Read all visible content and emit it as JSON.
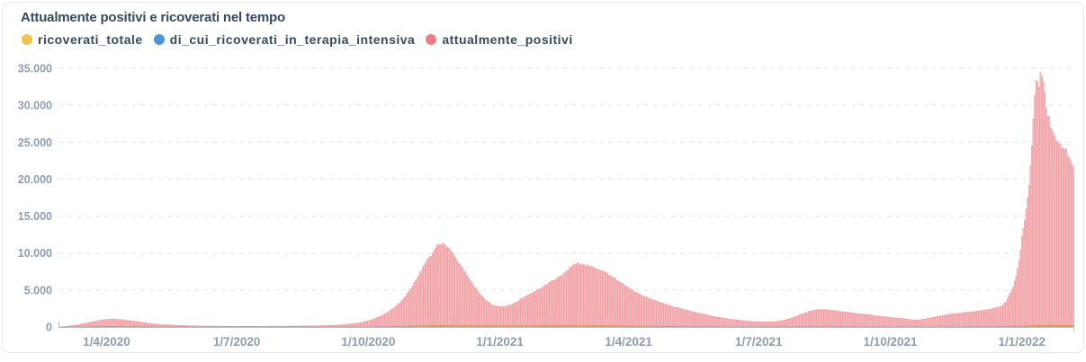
{
  "card": {
    "title": "Attualmente positivi e ricoverati nel tempo"
  },
  "legend": [
    {
      "label": "ricoverati_totale",
      "color": "#f0c24b"
    },
    {
      "label": "di_cui_ricoverati_in_terapia_intensiva",
      "color": "#4d96d9"
    },
    {
      "label": "attualmente_positivi",
      "color": "#ed7d82"
    }
  ],
  "chart_data": {
    "type": "bar",
    "title": "Attualmente positivi e ricoverati nel tempo",
    "x_start_date": "2020-02-28",
    "x_end_date": "2022-02-06",
    "x_tick_labels": [
      "1/4/2020",
      "1/7/2020",
      "1/10/2020",
      "1/1/2021",
      "1/4/2021",
      "1/7/2021",
      "1/10/2021",
      "1/1/2022"
    ],
    "x_tick_day_index": [
      33,
      124,
      216,
      308,
      398,
      489,
      581,
      673
    ],
    "y_tick_labels": [
      "0",
      "5.000",
      "10.000",
      "15.000",
      "20.000",
      "25.000",
      "30.000",
      "35.000"
    ],
    "y_tick_values": [
      0,
      5000,
      10000,
      15000,
      20000,
      25000,
      30000,
      35000
    ],
    "ylim": [
      0,
      35000
    ],
    "grid": "dashed-horizontal",
    "legend_position": "top-left",
    "bar_frequency": "daily",
    "series": [
      {
        "name": "attualmente_positivi",
        "color_fill": "#f9cbce",
        "color_stroke": "#ee9a9f",
        "keypoints_day_value": [
          [
            0,
            15
          ],
          [
            6,
            90
          ],
          [
            12,
            260
          ],
          [
            18,
            480
          ],
          [
            24,
            730
          ],
          [
            29,
            920
          ],
          [
            33,
            1030
          ],
          [
            36,
            1070
          ],
          [
            40,
            1040
          ],
          [
            45,
            950
          ],
          [
            50,
            840
          ],
          [
            56,
            680
          ],
          [
            63,
            480
          ],
          [
            70,
            350
          ],
          [
            78,
            260
          ],
          [
            86,
            190
          ],
          [
            94,
            150
          ],
          [
            102,
            125
          ],
          [
            112,
            100
          ],
          [
            122,
            90
          ],
          [
            132,
            88
          ],
          [
            142,
            92
          ],
          [
            152,
            100
          ],
          [
            162,
            115
          ],
          [
            172,
            135
          ],
          [
            182,
            160
          ],
          [
            192,
            220
          ],
          [
            199,
            320
          ],
          [
            205,
            430
          ],
          [
            210,
            560
          ],
          [
            214,
            720
          ],
          [
            218,
            950
          ],
          [
            222,
            1250
          ],
          [
            226,
            1600
          ],
          [
            230,
            2050
          ],
          [
            234,
            2600
          ],
          [
            238,
            3300
          ],
          [
            242,
            4200
          ],
          [
            246,
            5300
          ],
          [
            250,
            6600
          ],
          [
            254,
            8000
          ],
          [
            257,
            9100
          ],
          [
            259,
            9700
          ],
          [
            260,
            9500
          ],
          [
            262,
            10400
          ],
          [
            264,
            11000
          ],
          [
            265,
            11350
          ],
          [
            267,
            11250
          ],
          [
            269,
            11350
          ],
          [
            271,
            11000
          ],
          [
            274,
            10300
          ],
          [
            277,
            9400
          ],
          [
            280,
            8500
          ],
          [
            283,
            7600
          ],
          [
            286,
            6700
          ],
          [
            289,
            5800
          ],
          [
            292,
            5000
          ],
          [
            295,
            4300
          ],
          [
            298,
            3700
          ],
          [
            301,
            3200
          ],
          [
            304,
            2900
          ],
          [
            307,
            2780
          ],
          [
            311,
            2760
          ],
          [
            315,
            2950
          ],
          [
            319,
            3300
          ],
          [
            323,
            3800
          ],
          [
            327,
            4250
          ],
          [
            331,
            4700
          ],
          [
            335,
            5100
          ],
          [
            339,
            5550
          ],
          [
            343,
            6050
          ],
          [
            347,
            6550
          ],
          [
            351,
            7050
          ],
          [
            355,
            7600
          ],
          [
            358,
            8300
          ],
          [
            360,
            8500
          ],
          [
            363,
            8600
          ],
          [
            366,
            8500
          ],
          [
            369,
            8350
          ],
          [
            372,
            8150
          ],
          [
            376,
            7900
          ],
          [
            380,
            7550
          ],
          [
            384,
            7100
          ],
          [
            388,
            6650
          ],
          [
            392,
            6150
          ],
          [
            396,
            5600
          ],
          [
            400,
            5050
          ],
          [
            404,
            4600
          ],
          [
            409,
            4150
          ],
          [
            414,
            3750
          ],
          [
            419,
            3400
          ],
          [
            424,
            3050
          ],
          [
            429,
            2750
          ],
          [
            434,
            2500
          ],
          [
            439,
            2280
          ],
          [
            444,
            2000
          ],
          [
            449,
            1780
          ],
          [
            454,
            1570
          ],
          [
            459,
            1380
          ],
          [
            464,
            1220
          ],
          [
            469,
            1060
          ],
          [
            474,
            940
          ],
          [
            479,
            830
          ],
          [
            484,
            750
          ],
          [
            489,
            700
          ],
          [
            494,
            670
          ],
          [
            499,
            700
          ],
          [
            504,
            800
          ],
          [
            509,
            1020
          ],
          [
            514,
            1350
          ],
          [
            519,
            1750
          ],
          [
            524,
            2100
          ],
          [
            528,
            2300
          ],
          [
            532,
            2370
          ],
          [
            536,
            2340
          ],
          [
            541,
            2250
          ],
          [
            547,
            2080
          ],
          [
            556,
            1880
          ],
          [
            564,
            1700
          ],
          [
            572,
            1500
          ],
          [
            580,
            1330
          ],
          [
            588,
            1170
          ],
          [
            594,
            1030
          ],
          [
            598,
            940
          ],
          [
            603,
            1000
          ],
          [
            608,
            1180
          ],
          [
            615,
            1480
          ],
          [
            622,
            1700
          ],
          [
            630,
            1900
          ],
          [
            638,
            2060
          ],
          [
            645,
            2230
          ],
          [
            652,
            2450
          ],
          [
            656,
            2640
          ],
          [
            659,
            2830
          ],
          [
            662,
            3440
          ],
          [
            665,
            4660
          ],
          [
            667,
            5500
          ],
          [
            669,
            7000
          ],
          [
            671,
            9000
          ],
          [
            672,
            10300
          ],
          [
            673,
            12200
          ],
          [
            674,
            13400
          ],
          [
            675,
            14700
          ],
          [
            676,
            16000
          ],
          [
            677,
            17400
          ],
          [
            678,
            19500
          ],
          [
            679,
            22000
          ],
          [
            680,
            24800
          ],
          [
            681,
            28500
          ],
          [
            682,
            31200
          ],
          [
            683,
            33200
          ],
          [
            684,
            33000
          ],
          [
            685,
            32600
          ],
          [
            686,
            34800
          ],
          [
            687,
            34200
          ],
          [
            688,
            33000
          ],
          [
            689,
            31600
          ],
          [
            690,
            30200
          ],
          [
            691,
            29100
          ],
          [
            692,
            28200
          ],
          [
            693,
            27400
          ],
          [
            694,
            26800
          ],
          [
            695,
            26400
          ],
          [
            696,
            26000
          ],
          [
            697,
            25700
          ],
          [
            698,
            25400
          ],
          [
            699,
            25100
          ],
          [
            700,
            24800
          ],
          [
            701,
            24500
          ],
          [
            702,
            24300
          ],
          [
            703,
            24100
          ],
          [
            704,
            23900
          ],
          [
            705,
            23600
          ],
          [
            706,
            23200
          ],
          [
            707,
            22700
          ],
          [
            708,
            22200
          ],
          [
            709,
            21900
          ]
        ]
      },
      {
        "name": "ricoverati_totale",
        "color_fill": "#eaa365",
        "color_stroke": "#de9450",
        "keypoints_day_value": [
          [
            0,
            5
          ],
          [
            20,
            55
          ],
          [
            36,
            100
          ],
          [
            60,
            65
          ],
          [
            90,
            32
          ],
          [
            130,
            22
          ],
          [
            180,
            28
          ],
          [
            215,
            42
          ],
          [
            235,
            85
          ],
          [
            255,
            190
          ],
          [
            268,
            250
          ],
          [
            285,
            215
          ],
          [
            305,
            180
          ],
          [
            330,
            185
          ],
          [
            360,
            225
          ],
          [
            380,
            195
          ],
          [
            398,
            155
          ],
          [
            420,
            105
          ],
          [
            450,
            62
          ],
          [
            480,
            40
          ],
          [
            500,
            45
          ],
          [
            530,
            62
          ],
          [
            560,
            50
          ],
          [
            597,
            35
          ],
          [
            630,
            45
          ],
          [
            660,
            70
          ],
          [
            673,
            115
          ],
          [
            680,
            190
          ],
          [
            686,
            250
          ],
          [
            695,
            260
          ],
          [
            705,
            230
          ],
          [
            709,
            220
          ]
        ]
      },
      {
        "name": "di_cui_ricoverati_in_terapia_intensiva",
        "color_fill": "#7fb3e3",
        "color_stroke": "#4d96d9",
        "keypoints_day_value": [
          [
            0,
            1
          ],
          [
            36,
            15
          ],
          [
            90,
            4
          ],
          [
            180,
            3
          ],
          [
            255,
            25
          ],
          [
            268,
            32
          ],
          [
            305,
            22
          ],
          [
            360,
            28
          ],
          [
            398,
            20
          ],
          [
            450,
            8
          ],
          [
            530,
            7
          ],
          [
            597,
            4
          ],
          [
            660,
            8
          ],
          [
            680,
            25
          ],
          [
            690,
            33
          ],
          [
            705,
            28
          ],
          [
            709,
            26
          ]
        ]
      }
    ]
  }
}
